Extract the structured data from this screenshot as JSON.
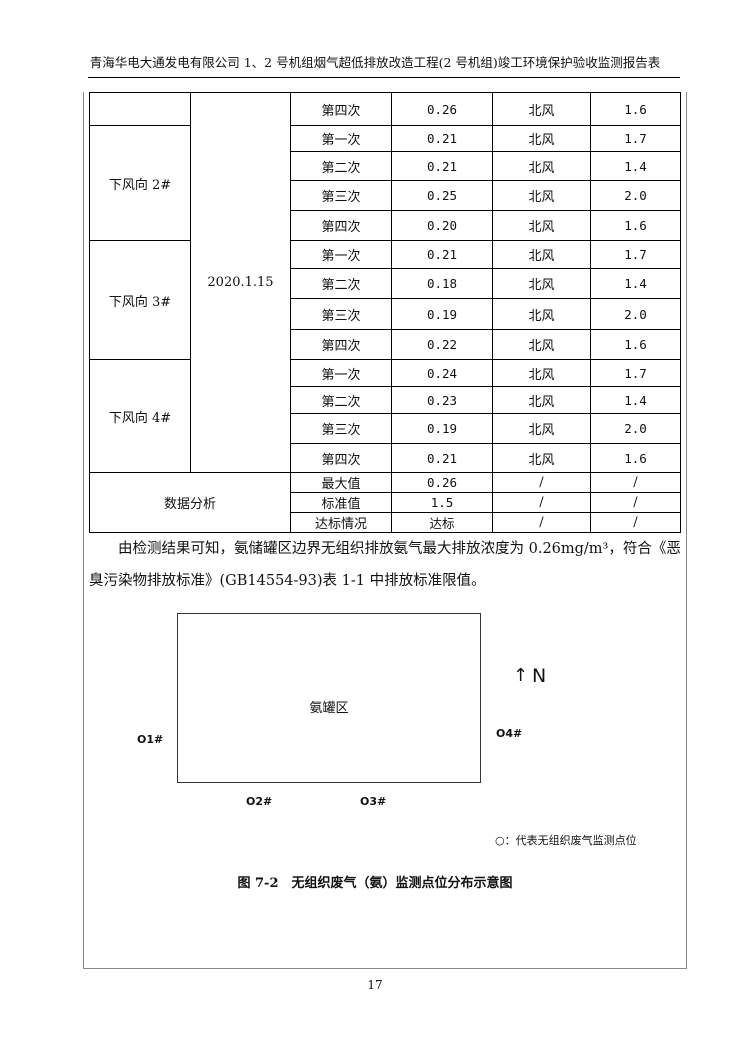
{
  "header": {
    "title": "青海华电大通发电有限公司 1、2 号机组烟气超低排放改造工程(2 号机组)竣工环境保护验收监测报告表"
  },
  "table": {
    "date": "2020.1.15",
    "first_row": {
      "time": "第四次",
      "value": "0.26",
      "wind": "北风",
      "speed": "1.6"
    },
    "groups": [
      {
        "point": "下风向 2#",
        "rows": [
          [
            "第一次",
            "0.21",
            "北风",
            "1.7"
          ],
          [
            "第二次",
            "0.21",
            "北风",
            "1.4"
          ],
          [
            "第三次",
            "0.25",
            "北风",
            "2.0"
          ],
          [
            "第四次",
            "0.20",
            "北风",
            "1.6"
          ]
        ]
      },
      {
        "point": "下风向 3#",
        "rows": [
          [
            "第一次",
            "0.21",
            "北风",
            "1.7"
          ],
          [
            "第二次",
            "0.18",
            "北风",
            "1.4"
          ],
          [
            "第三次",
            "0.19",
            "北风",
            "2.0"
          ],
          [
            "第四次",
            "0.22",
            "北风",
            "1.6"
          ]
        ]
      },
      {
        "point": "下风向 4#",
        "rows": [
          [
            "第一次",
            "0.24",
            "北风",
            "1.7"
          ],
          [
            "第二次",
            "0.23",
            "北风",
            "1.4"
          ],
          [
            "第三次",
            "0.19",
            "北风",
            "2.0"
          ],
          [
            "第四次",
            "0.21",
            "北风",
            "1.6"
          ]
        ]
      }
    ],
    "analysis": {
      "label": "数据分析",
      "rows": [
        [
          "最大值",
          "0.26",
          "/",
          "/"
        ],
        [
          "标准值",
          "1.5",
          "/",
          "/"
        ],
        [
          "达标情况",
          "达标",
          "/",
          "/"
        ]
      ]
    }
  },
  "conclusion": "由检测结果可知，氨储罐区边界无组织排放氨气最大排放浓度为 0.26mg/m³，符合《恶臭污染物排放标准》(GB14554-93)表 1-1 中排放标准限值。",
  "diagram": {
    "area_label": "氨罐区",
    "north": "N",
    "points": [
      "O1#",
      "O2#",
      "O3#",
      "O4#"
    ],
    "legend": "○：代表无组织废气监测点位"
  },
  "figure_caption": "图 7-2　无组织废气（氨）监测点位分布示意图",
  "page_number": "17"
}
